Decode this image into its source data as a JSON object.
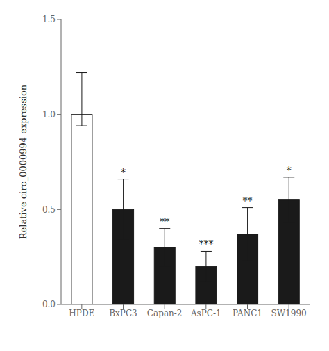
{
  "chart_data": {
    "type": "bar",
    "categories": [
      "HPDE",
      "BxPC3",
      "Capan-2",
      "AsPC-1",
      "PANC1",
      "SW1990"
    ],
    "values": [
      1.0,
      0.5,
      0.3,
      0.2,
      0.37,
      0.55
    ],
    "error_upper": [
      0.22,
      0.16,
      0.1,
      0.08,
      0.14,
      0.12
    ],
    "error_lower": [
      0.06,
      0.16,
      0.1,
      0.08,
      0.14,
      0.12
    ],
    "colors": [
      "#ffffff",
      "#1a1a1a",
      "#1a1a1a",
      "#1a1a1a",
      "#1a1a1a",
      "#1a1a1a"
    ],
    "annotations": [
      null,
      "*",
      "**",
      "***",
      "**",
      "*"
    ],
    "ylabel": "Relative circ_0000994 expression",
    "ylim": [
      0.0,
      1.5
    ],
    "yticks": [
      {
        "value": 0.0,
        "label": "0.0"
      },
      {
        "value": 0.5,
        "label": "0.5"
      },
      {
        "value": 1.0,
        "label": "1.0"
      },
      {
        "value": 1.5,
        "label": "1.5"
      }
    ],
    "grid": false
  }
}
